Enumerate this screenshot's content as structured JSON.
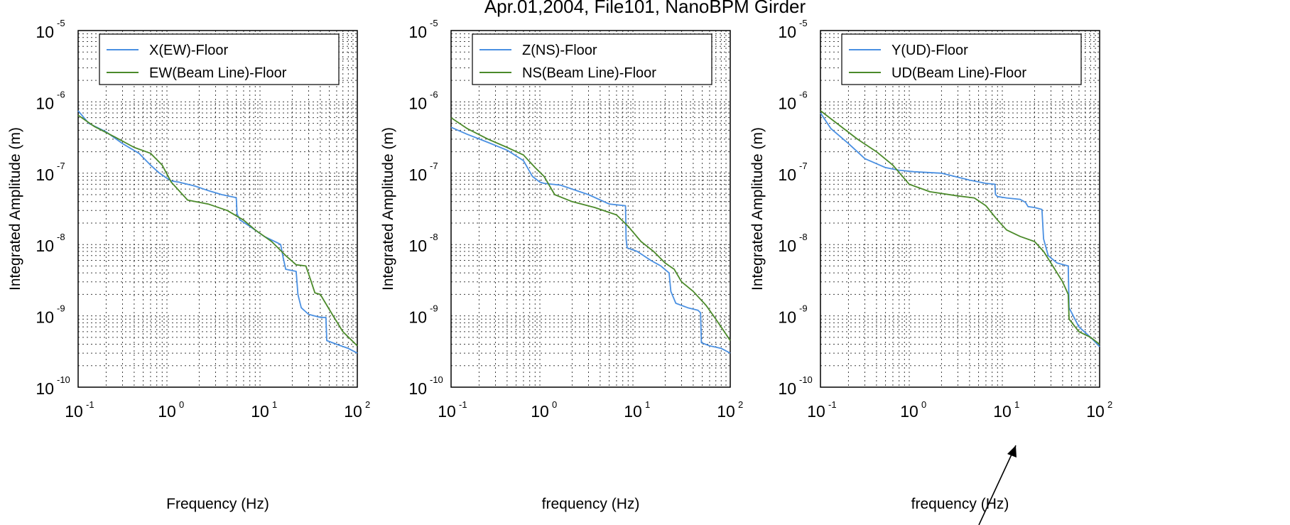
{
  "title": "Apr.01,2004, File101, NanoBPM Girder",
  "colors": {
    "series1": "#4a90e2",
    "series2": "#4b8a2a",
    "grid": "#000000",
    "annotation_arrow": "#000000"
  },
  "chart_data": [
    {
      "type": "line",
      "xscale": "log",
      "yscale": "log",
      "xlim": [
        0.1,
        100
      ],
      "ylim": [
        1e-10,
        1e-05
      ],
      "xlabel": "Frequency (Hz)",
      "ylabel": "Integrated Amplitude (m)",
      "grid": true,
      "legend_position": "top-right",
      "series": [
        {
          "name": "X(EW)-Floor",
          "color": "#4a90e2",
          "x": [
            0.1,
            0.13,
            0.2,
            0.3,
            0.45,
            0.6,
            0.75,
            0.9,
            1.0,
            1.2,
            1.8,
            2.5,
            3.5,
            4.8,
            5.0,
            5.1,
            5.5,
            7,
            10,
            14,
            15,
            16,
            17,
            22,
            23,
            25,
            30,
            40,
            46,
            47,
            60,
            80,
            100
          ],
          "y": [
            7.5e-07,
            5e-07,
            3.8e-07,
            2.6e-07,
            1.9e-07,
            1.3e-07,
            1e-07,
            8.5e-08,
            7.8e-08,
            7.5e-08,
            6.6e-08,
            5.7e-08,
            5e-08,
            4.6e-08,
            4.5e-08,
            2.7e-08,
            2.2e-08,
            1.8e-08,
            1.3e-08,
            1.05e-08,
            1e-08,
            6.5e-09,
            4.5e-09,
            4.2e-09,
            2e-09,
            1.3e-09,
            1.05e-09,
            9.5e-10,
            9.5e-10,
            4.5e-10,
            4e-10,
            3.5e-10,
            3e-10
          ]
        },
        {
          "name": "EW(Beam Line)-Floor",
          "color": "#4b8a2a",
          "x": [
            0.1,
            0.15,
            0.25,
            0.4,
            0.6,
            0.8,
            1.0,
            1.5,
            2.5,
            4,
            6,
            8,
            12,
            17,
            22,
            28,
            32,
            35,
            40,
            55,
            70,
            100
          ],
          "y": [
            6.5e-07,
            4.5e-07,
            3.2e-07,
            2.3e-07,
            1.9e-07,
            1.3e-07,
            7.5e-08,
            4.2e-08,
            3.7e-08,
            3e-08,
            2.2e-08,
            1.6e-08,
            1.1e-08,
            7e-09,
            5.2e-09,
            5e-09,
            3e-09,
            2.1e-09,
            2e-09,
            1e-09,
            6e-10,
            3.8e-10
          ]
        }
      ]
    },
    {
      "type": "line",
      "xscale": "log",
      "yscale": "log",
      "xlim": [
        0.1,
        100
      ],
      "ylim": [
        1e-10,
        1e-05
      ],
      "xlabel": "frequency (Hz)",
      "ylabel": "Integrated Amplitude (m)",
      "grid": true,
      "legend_position": "top-right",
      "series": [
        {
          "name": "Z(NS)-Floor",
          "color": "#4a90e2",
          "x": [
            0.1,
            0.15,
            0.25,
            0.4,
            0.6,
            0.75,
            0.9,
            1.0,
            1.5,
            3,
            5,
            7.5,
            7.6,
            7.8,
            10,
            14,
            18,
            22,
            23,
            26,
            35,
            45,
            48,
            49,
            60,
            80,
            100
          ],
          "y": [
            4.4e-07,
            3.5e-07,
            2.7e-07,
            2.1e-07,
            1.5e-07,
            9e-08,
            7.5e-08,
            7.2e-08,
            6.8e-08,
            5e-08,
            3.7e-08,
            3.5e-08,
            1.2e-08,
            9e-09,
            8e-09,
            6e-09,
            5e-09,
            4e-09,
            2.2e-09,
            1.5e-09,
            1.3e-09,
            1.2e-09,
            1.1e-09,
            4.2e-10,
            3.8e-10,
            3.5e-10,
            3e-10
          ]
        },
        {
          "name": "NS(Beam Line)-Floor",
          "color": "#4b8a2a",
          "x": [
            0.1,
            0.15,
            0.25,
            0.4,
            0.6,
            0.8,
            1.0,
            1.3,
            2,
            3.5,
            6,
            8,
            11,
            15,
            20,
            25,
            30,
            40,
            55,
            70,
            100
          ],
          "y": [
            6e-07,
            4.2e-07,
            3e-07,
            2.3e-07,
            1.8e-07,
            1.2e-07,
            9e-08,
            5e-08,
            4e-08,
            3.3e-08,
            2.6e-08,
            1.8e-08,
            1.1e-08,
            8e-09,
            5.5e-09,
            4.5e-09,
            3e-09,
            2.2e-09,
            1.4e-09,
            9e-10,
            4.5e-10
          ]
        }
      ]
    },
    {
      "type": "line",
      "xscale": "log",
      "yscale": "log",
      "xlim": [
        0.1,
        100
      ],
      "ylim": [
        1e-10,
        1e-05
      ],
      "xlabel": "frequency (Hz)",
      "ylabel": "Integrated Amplitude (m)",
      "grid": true,
      "legend_position": "top-right",
      "series": [
        {
          "name": "Y(UD)-Floor",
          "color": "#4a90e2",
          "x": [
            0.1,
            0.13,
            0.2,
            0.3,
            0.5,
            0.7,
            1.0,
            2,
            4,
            6,
            7.5,
            7.6,
            8,
            10,
            14,
            16,
            17,
            20,
            22,
            24,
            25,
            28,
            35,
            46,
            47,
            60,
            80,
            100
          ],
          "y": [
            7e-07,
            4.2e-07,
            2.6e-07,
            1.6e-07,
            1.2e-07,
            1.1e-07,
            1.05e-07,
            1e-07,
            8e-08,
            7.2e-08,
            7e-08,
            5e-08,
            4.7e-08,
            4.5e-08,
            4.3e-08,
            3.9e-08,
            3.4e-08,
            3.3e-08,
            3.2e-08,
            3.1e-08,
            1.2e-08,
            7e-09,
            5.5e-09,
            5e-09,
            1.3e-09,
            7e-10,
            5e-10,
            3.7e-10
          ]
        },
        {
          "name": "UD(Beam Line)-Floor",
          "color": "#4b8a2a",
          "x": [
            0.1,
            0.15,
            0.25,
            0.4,
            0.6,
            0.9,
            1.5,
            3,
            4.5,
            6,
            8,
            10,
            14,
            20,
            25,
            30,
            40,
            46,
            47,
            60,
            80,
            100
          ],
          "y": [
            7.5e-07,
            5e-07,
            3e-07,
            2e-07,
            1.3e-07,
            7e-08,
            5.5e-08,
            4.8e-08,
            4.5e-08,
            3.5e-08,
            2.2e-08,
            1.6e-08,
            1.3e-08,
            1.1e-08,
            8e-09,
            5.5e-09,
            3e-09,
            2e-09,
            9e-10,
            6e-10,
            5e-10,
            4e-10
          ]
        }
      ]
    }
  ]
}
